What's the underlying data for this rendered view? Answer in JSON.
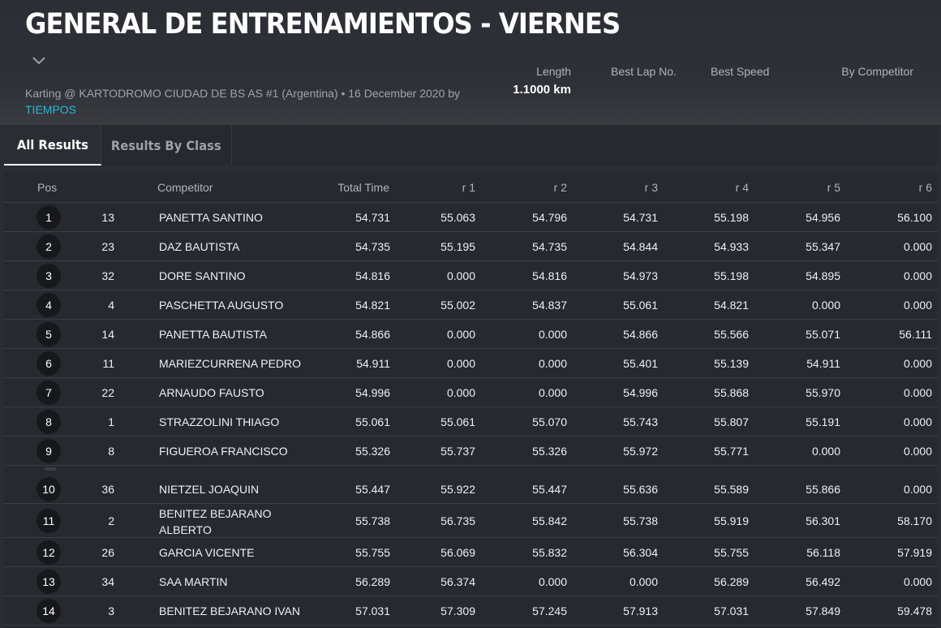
{
  "header": {
    "title": "GENERAL DE ENTRENAMIENTOS - VIERNES",
    "subtitle_text": "Karting @ KARTODROMO CIUDAD DE BS AS #1 (Argentina) • 16 December 2020 by",
    "subtitle_link": "TIEMPOS",
    "stats": {
      "length_label": "Length",
      "length_value": "1.1000 km",
      "best_lap_label": "Best Lap No.",
      "best_speed_label": "Best Speed",
      "by_competitor_label": "By Competitor"
    }
  },
  "tabs": [
    {
      "label": "All Results",
      "active": true
    },
    {
      "label": "Results By Class",
      "active": false
    }
  ],
  "columns": {
    "pos": "Pos",
    "competitor": "Competitor",
    "total_time": "Total Time",
    "r1": "r 1",
    "r2": "r 2",
    "r3": "r 3",
    "r4": "r 4",
    "r5": "r 5",
    "r6": "r 6"
  },
  "rows": [
    {
      "pos": "1",
      "num": "13",
      "name": "PANETTA SANTINO",
      "total": "54.731",
      "r": [
        "55.063",
        "54.796",
        "54.731",
        "55.198",
        "54.956",
        "56.100"
      ]
    },
    {
      "pos": "2",
      "num": "23",
      "name": "DAZ BAUTISTA",
      "total": "54.735",
      "r": [
        "55.195",
        "54.735",
        "54.844",
        "54.933",
        "55.347",
        "0.000"
      ]
    },
    {
      "pos": "3",
      "num": "32",
      "name": "DORE SANTINO",
      "total": "54.816",
      "r": [
        "0.000",
        "54.816",
        "54.973",
        "55.198",
        "54.895",
        "0.000"
      ]
    },
    {
      "pos": "4",
      "num": "4",
      "name": "PASCHETTA AUGUSTO",
      "total": "54.821",
      "r": [
        "55.002",
        "54.837",
        "55.061",
        "54.821",
        "0.000",
        "0.000"
      ]
    },
    {
      "pos": "5",
      "num": "14",
      "name": "PANETTA BAUTISTA",
      "total": "54.866",
      "r": [
        "0.000",
        "0.000",
        "54.866",
        "55.566",
        "55.071",
        "56.111"
      ]
    },
    {
      "pos": "6",
      "num": "11",
      "name": "MARIEZCURRENA PEDRO",
      "total": "54.911",
      "r": [
        "0.000",
        "0.000",
        "55.401",
        "55.139",
        "54.911",
        "0.000"
      ]
    },
    {
      "pos": "7",
      "num": "22",
      "name": "ARNAUDO FAUSTO",
      "total": "54.996",
      "r": [
        "0.000",
        "0.000",
        "54.996",
        "55.868",
        "55.970",
        "0.000"
      ]
    },
    {
      "pos": "8",
      "num": "1",
      "name": "STRAZZOLINI THIAGO",
      "total": "55.061",
      "r": [
        "55.061",
        "55.070",
        "55.743",
        "55.807",
        "55.191",
        "0.000"
      ]
    },
    {
      "pos": "9",
      "num": "8",
      "name": "FIGUEROA FRANCISCO",
      "total": "55.326",
      "r": [
        "55.737",
        "55.326",
        "55.972",
        "55.771",
        "0.000",
        "0.000"
      ]
    },
    {
      "pos": "10",
      "num": "36",
      "name": "NIETZEL JOAQUIN",
      "total": "55.447",
      "r": [
        "55.922",
        "55.447",
        "55.636",
        "55.589",
        "55.866",
        "0.000"
      ]
    },
    {
      "pos": "11",
      "num": "2",
      "name": "BENITEZ BEJARANO ALBERTO",
      "total": "55.738",
      "r": [
        "56.735",
        "55.842",
        "55.738",
        "55.919",
        "56.301",
        "58.170"
      ]
    },
    {
      "pos": "12",
      "num": "26",
      "name": "GARCIA VICENTE",
      "total": "55.755",
      "r": [
        "56.069",
        "55.832",
        "56.304",
        "55.755",
        "56.118",
        "57.919"
      ]
    },
    {
      "pos": "13",
      "num": "34",
      "name": "SAA MARTIN",
      "total": "56.289",
      "r": [
        "56.374",
        "0.000",
        "0.000",
        "56.289",
        "56.492",
        "0.000"
      ]
    },
    {
      "pos": "14",
      "num": "3",
      "name": "BENITEZ BEJARANO IVAN",
      "total": "57.031",
      "r": [
        "57.309",
        "57.245",
        "57.913",
        "57.031",
        "57.849",
        "59.478"
      ]
    }
  ]
}
